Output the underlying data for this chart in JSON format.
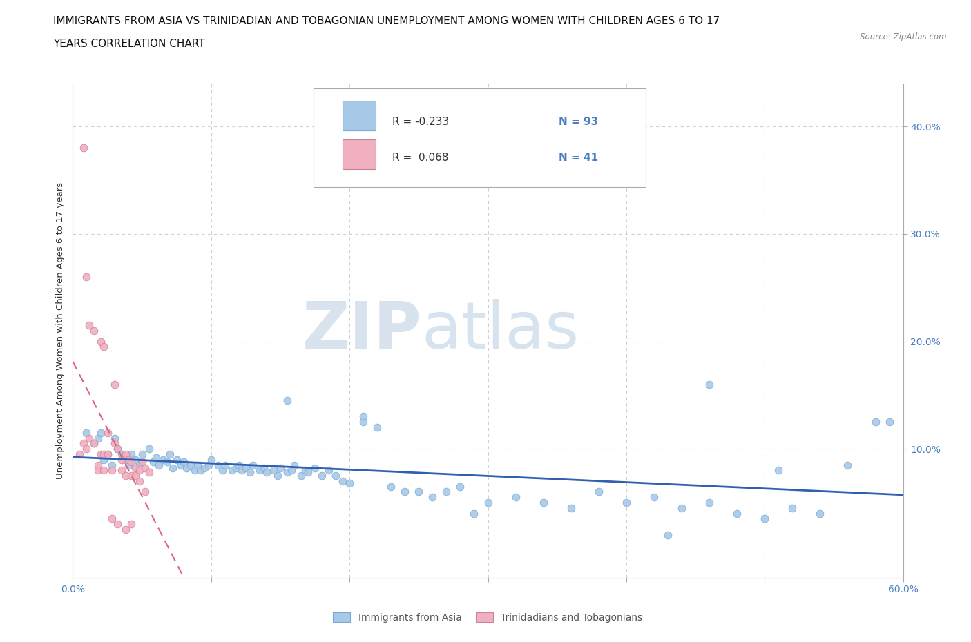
{
  "title_line1": "IMMIGRANTS FROM ASIA VS TRINIDADIAN AND TOBAGONIAN UNEMPLOYMENT AMONG WOMEN WITH CHILDREN AGES 6 TO 17",
  "title_line2": "YEARS CORRELATION CHART",
  "source_text": "Source: ZipAtlas.com",
  "ylabel": "Unemployment Among Women with Children Ages 6 to 17 years",
  "xlim": [
    0.0,
    0.6
  ],
  "ylim": [
    -0.02,
    0.44
  ],
  "xticks": [
    0.0,
    0.1,
    0.2,
    0.3,
    0.4,
    0.5,
    0.6
  ],
  "xticklabels": [
    "0.0%",
    "",
    "",
    "",
    "",
    "",
    "60.0%"
  ],
  "yticks": [
    0.1,
    0.2,
    0.3,
    0.4
  ],
  "yticklabels": [
    "10.0%",
    "20.0%",
    "30.0%",
    "40.0%"
  ],
  "grid_color": "#d0d0d0",
  "background_color": "#ffffff",
  "watermark_text1": "ZIP",
  "watermark_text2": "atlas",
  "legend_R1": "R = -0.233",
  "legend_N1": "N = 93",
  "legend_R2": "R =  0.068",
  "legend_N2": "N = 41",
  "color_asia": "#a8c8e8",
  "color_tnt": "#f0b0c0",
  "trendline_asia_color": "#3060b0",
  "trendline_tnt_color": "#e06080",
  "legend_label_asia": "Immigrants from Asia",
  "legend_label_tnt": "Trinidadians and Tobagonians",
  "asia_x": [
    0.01,
    0.015,
    0.018,
    0.02,
    0.022,
    0.025,
    0.028,
    0.03,
    0.032,
    0.035,
    0.038,
    0.04,
    0.042,
    0.045,
    0.048,
    0.05,
    0.055,
    0.058,
    0.06,
    0.062,
    0.065,
    0.068,
    0.07,
    0.072,
    0.075,
    0.078,
    0.08,
    0.082,
    0.085,
    0.088,
    0.09,
    0.092,
    0.095,
    0.098,
    0.1,
    0.105,
    0.108,
    0.11,
    0.115,
    0.118,
    0.12,
    0.122,
    0.125,
    0.128,
    0.13,
    0.135,
    0.138,
    0.14,
    0.145,
    0.148,
    0.15,
    0.155,
    0.158,
    0.16,
    0.165,
    0.168,
    0.17,
    0.175,
    0.18,
    0.185,
    0.19,
    0.195,
    0.2,
    0.21,
    0.22,
    0.23,
    0.24,
    0.25,
    0.26,
    0.27,
    0.28,
    0.29,
    0.3,
    0.32,
    0.34,
    0.36,
    0.38,
    0.4,
    0.42,
    0.44,
    0.46,
    0.48,
    0.5,
    0.52,
    0.54,
    0.56,
    0.58,
    0.21,
    0.155,
    0.43,
    0.46,
    0.51,
    0.59
  ],
  "asia_y": [
    0.115,
    0.105,
    0.11,
    0.115,
    0.09,
    0.095,
    0.085,
    0.11,
    0.1,
    0.095,
    0.09,
    0.085,
    0.095,
    0.09,
    0.085,
    0.095,
    0.1,
    0.088,
    0.092,
    0.085,
    0.09,
    0.088,
    0.095,
    0.082,
    0.09,
    0.085,
    0.088,
    0.082,
    0.085,
    0.08,
    0.085,
    0.08,
    0.082,
    0.085,
    0.09,
    0.085,
    0.08,
    0.085,
    0.08,
    0.082,
    0.085,
    0.08,
    0.082,
    0.078,
    0.085,
    0.08,
    0.082,
    0.078,
    0.08,
    0.075,
    0.082,
    0.078,
    0.08,
    0.085,
    0.075,
    0.08,
    0.078,
    0.082,
    0.075,
    0.08,
    0.075,
    0.07,
    0.068,
    0.125,
    0.12,
    0.065,
    0.06,
    0.06,
    0.055,
    0.06,
    0.065,
    0.04,
    0.05,
    0.055,
    0.05,
    0.045,
    0.06,
    0.05,
    0.055,
    0.045,
    0.05,
    0.04,
    0.035,
    0.045,
    0.04,
    0.085,
    0.125,
    0.13,
    0.145,
    0.02,
    0.16,
    0.08,
    0.125
  ],
  "tnt_x": [
    0.005,
    0.008,
    0.01,
    0.012,
    0.015,
    0.018,
    0.02,
    0.022,
    0.025,
    0.028,
    0.03,
    0.032,
    0.035,
    0.038,
    0.04,
    0.042,
    0.045,
    0.048,
    0.05,
    0.052,
    0.055,
    0.008,
    0.01,
    0.012,
    0.015,
    0.02,
    0.022,
    0.025,
    0.03,
    0.035,
    0.038,
    0.042,
    0.045,
    0.048,
    0.018,
    0.022,
    0.028,
    0.032,
    0.038,
    0.042,
    0.052
  ],
  "tnt_y": [
    0.095,
    0.105,
    0.1,
    0.11,
    0.105,
    0.08,
    0.095,
    0.095,
    0.095,
    0.08,
    0.105,
    0.1,
    0.09,
    0.095,
    0.09,
    0.088,
    0.082,
    0.08,
    0.088,
    0.082,
    0.078,
    0.38,
    0.26,
    0.215,
    0.21,
    0.2,
    0.195,
    0.115,
    0.16,
    0.08,
    0.075,
    0.075,
    0.075,
    0.07,
    0.085,
    0.08,
    0.035,
    0.03,
    0.025,
    0.03,
    0.06
  ]
}
